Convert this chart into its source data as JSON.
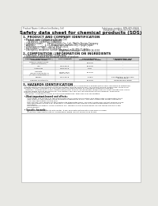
{
  "bg_color": "#e8e8e4",
  "page_bg": "#ffffff",
  "title": "Safety data sheet for chemical products (SDS)",
  "header_left": "Product Name: Lithium Ion Battery Cell",
  "header_right_line1": "Substance number: SRN-049-00610",
  "header_right_line2": "Established / Revision: Dec.7.2010",
  "section1_title": "1. PRODUCT AND COMPANY IDENTIFICATION",
  "section1_lines": [
    "  • Product name: Lithium Ion Battery Cell",
    "  • Product code: Cylindrical-type cell",
    "       04166500, 04168500, 04168504",
    "  • Company name:      Sanyo Electric Co., Ltd., Mobile Energy Company",
    "  • Address:              2-1-1  Kamionachi, Sumoto-City, Hyogo, Japan",
    "  • Telephone number:   +81-(799)-20-4111",
    "  • Fax number:   +81-1799-26-4120",
    "  • Emergency telephone number (daytime): +81-799-20-3942",
    "                                                    (Night and holidays): +81-799-26-4101"
  ],
  "section2_title": "2. COMPOSITION / INFORMATION ON INGREDIENTS",
  "section2_intro": "  • Substance or preparation: Preparation",
  "section2_sub": "  • Information about the chemical nature of product:",
  "table_col_names": [
    "Common chemical name /\nScientific name",
    "CAS number",
    "Concentration /\nConcentration range",
    "Classification and\nhazard labeling"
  ],
  "table_rows": [
    [
      "Lithium cobalt oxide\n(LiMnxCoyNizO2)",
      "-",
      "30-60%",
      "-"
    ],
    [
      "Iron",
      "7439-89-6",
      "10-30%",
      "-"
    ],
    [
      "Aluminum",
      "7429-90-5",
      "2-8%",
      "-"
    ],
    [
      "Graphite\n(Wada a graphite-1)\n(Al-Mix a graphite-1)",
      "77782-42-5\n7782-44-27",
      "10-30%",
      "-"
    ],
    [
      "Copper",
      "7440-50-8",
      "5-15%",
      "Sensitization of the skin\ngroup No.2"
    ],
    [
      "Organic electrolyte",
      "-",
      "10-20%",
      "Inflammable liquid"
    ]
  ],
  "section3_title": "3. HAZARDS IDENTIFICATION",
  "section3_lines": [
    "  For this battery cell, chemical substances are stored in a hermetically-sealed metal case, designed to withstand",
    "  temperatures during electrolysis-decomposition during normal use. As a result, during normal use, there is no",
    "  physical danger of ignition or explosion and therefore danger of hazardous materials leakage.",
    "    However, if exposed to a fire, added mechanical shocks, decomposed, where electric short-circuits may occur,",
    "  the gas inside cannot be operated. The battery cell case will be breached at the extreme, hazardous",
    "  materials may be released.",
    "    Moreover, if heated strongly by the surrounding fire, toxic gas may be emitted."
  ],
  "section3_bullet1": "  • Most important hazard and effects:",
  "section3_sub_lines": [
    "    Human health effects:",
    "       Inhalation: The release of the electrolyte has an anesthesia action and stimulates a respiratory tract.",
    "       Skin contact: The release of the electrolyte stimulates a skin. The electrolyte skin contact causes a",
    "       sore and stimulation on the skin.",
    "       Eye contact: The release of the electrolyte stimulates eyes. The electrolyte eye contact causes a sore",
    "       and stimulation on the eye. Especially, a substance that causes a strong inflammation of the eye is",
    "       contained.",
    "       Environmental effects: Since a battery cell remains in the environment, do not throw out it into the",
    "       environment."
  ],
  "section3_specific": "  • Specific hazards:",
  "section3_specific_lines": [
    "       If the electrolyte contacts with water, it will generate detrimental hydrogen fluoride.",
    "       Since the used electrolyte is inflammable liquid, do not bring close to fire."
  ],
  "footer_line": true
}
